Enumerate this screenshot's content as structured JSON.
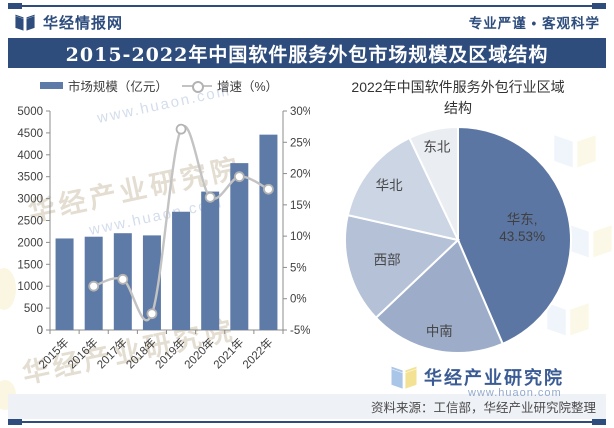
{
  "header": {
    "brand": "华经情报网",
    "slogan": "专业严谨 • 客观科学",
    "title": "2015-2022年中国软件服务外包市场规模及区域结构"
  },
  "colors": {
    "navy": "#2e4d7d",
    "bar": "#5e7aa6",
    "line": "#c3c3c3",
    "marker_stroke": "#b3b3b3",
    "axis": "#8c8c8c",
    "tick_text": "#3f3f3f",
    "footer_strip": "#eef1f6",
    "logo_book_blue": "#a9c6e8",
    "logo_book_yellow": "#f3e294"
  },
  "chart_data": [
    {
      "type": "bar",
      "subtype": "combo-bar-line",
      "categories": [
        "2015年",
        "2016年",
        "2017年",
        "2018年",
        "2019年",
        "2020年",
        "2021年",
        "2022年"
      ],
      "series": [
        {
          "name": "市场规模（亿元）",
          "type": "bar",
          "axis": "left",
          "values": [
            2090,
            2130,
            2210,
            2160,
            2700,
            3160,
            3810,
            4460
          ]
        },
        {
          "name": "增速（%）",
          "type": "line",
          "axis": "right",
          "values": [
            null,
            2.0,
            3.1,
            -2.4,
            27.1,
            16.2,
            19.5,
            17.5
          ]
        }
      ],
      "left_axis": {
        "min": 0,
        "max": 5000,
        "step": 500,
        "ticks": [
          "0",
          "500",
          "1000",
          "1500",
          "2000",
          "2500",
          "3000",
          "3500",
          "4000",
          "4500",
          "5000"
        ]
      },
      "right_axis": {
        "min": -5,
        "max": 30,
        "step": 5,
        "ticks": [
          "-5%",
          "0%",
          "5%",
          "10%",
          "15%",
          "20%",
          "25%",
          "30%"
        ]
      },
      "legend_position": "top",
      "grid": false
    },
    {
      "type": "pie",
      "title": "2022年中国软件服务外包行业区域结构",
      "slices": [
        {
          "label": "华东",
          "value": 43.53,
          "value_label": "43.53%",
          "color": "#5c76a3"
        },
        {
          "label": "中南",
          "value": 19.4,
          "color": "#9dadc9"
        },
        {
          "label": "西部",
          "value": 15.6,
          "color": "#b5c1d7"
        },
        {
          "label": "华北",
          "value": 14.4,
          "color": "#ccd5e4"
        },
        {
          "label": "东北",
          "value": 7.07,
          "color": "#eaedf2"
        }
      ],
      "start_angle_deg_from_north": 0,
      "direction": "clockwise"
    }
  ],
  "footer": {
    "logo_text": "华经产业研究院",
    "source": "资料来源：工信部，华经产业研究院整理"
  },
  "watermarks": {
    "brand": "华经产业研究院",
    "url": "www.huaon.com"
  }
}
